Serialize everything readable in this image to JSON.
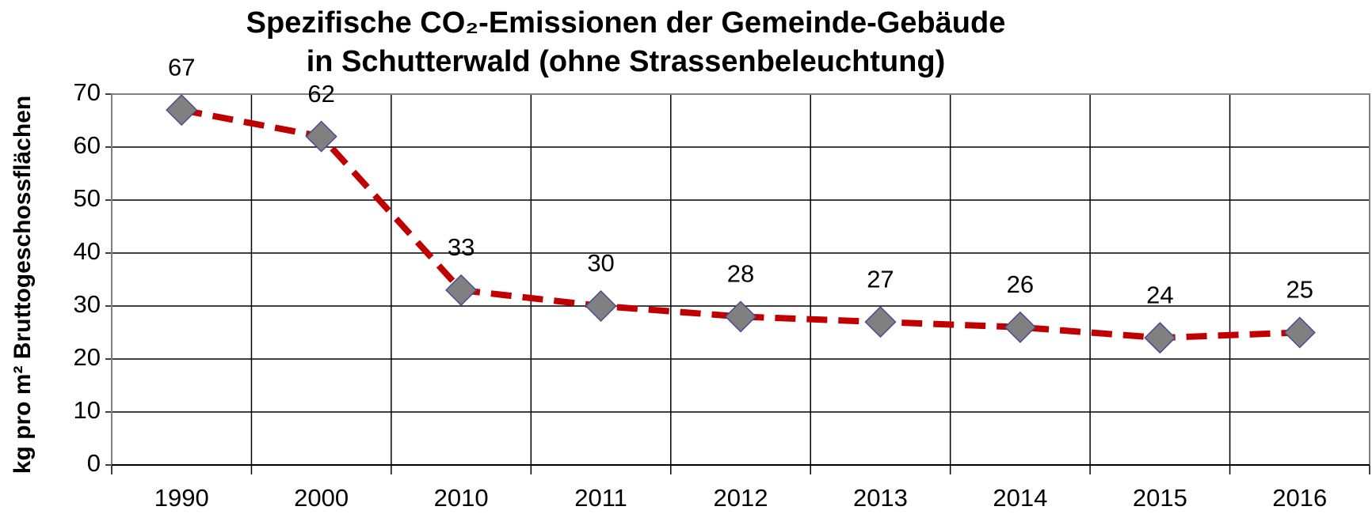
{
  "chart_data": {
    "type": "line",
    "title": [
      "Spezifische CO₂-Emissionen der Gemeinde-Gebäude",
      "in Schutterwald (ohne Strassenbeleuchtung)"
    ],
    "y_label": "kg pro m² Bruttogeschossflächen",
    "categories": [
      "1990",
      "2000",
      "2010",
      "2011",
      "2012",
      "2013",
      "2014",
      "2015",
      "2016"
    ],
    "values": [
      67,
      62,
      33,
      30,
      28,
      27,
      26,
      24,
      25
    ],
    "color": "#c00000",
    "marker_color": "#808080",
    "marker_edge": "#4b4b8f",
    "ylim": [
      0,
      70
    ],
    "yticks": [
      0,
      10,
      20,
      30,
      40,
      50,
      60,
      70
    ],
    "grid": true
  }
}
